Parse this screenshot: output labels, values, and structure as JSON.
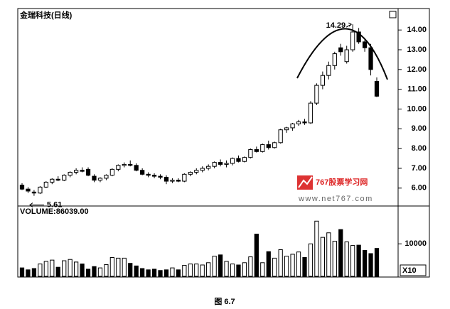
{
  "chart_data": [
    {
      "type": "candlestick",
      "title": "金瑞科技(日线)",
      "up_color": "#ffffff",
      "down_color": "#000000",
      "open": [
        6.15,
        5.95,
        5.8,
        5.75,
        6.05,
        6.3,
        6.45,
        6.4,
        6.65,
        6.8,
        6.9,
        6.95,
        6.6,
        6.4,
        6.5,
        6.65,
        6.95,
        7.15,
        7.2,
        7.15,
        6.9,
        6.7,
        6.65,
        6.6,
        6.55,
        6.35,
        6.4,
        6.35,
        6.7,
        6.8,
        6.9,
        7.0,
        7.1,
        7.3,
        7.2,
        7.25,
        7.5,
        7.35,
        7.55,
        7.95,
        7.85,
        8.2,
        8.05,
        8.3,
        8.95,
        9.05,
        9.25,
        9.35,
        9.3,
        10.3,
        11.2,
        11.7,
        12.2,
        13.1,
        12.4,
        13.0,
        13.9,
        13.4,
        13.1,
        11.4
      ],
      "high": [
        6.25,
        6.05,
        5.9,
        6.1,
        6.35,
        6.5,
        6.6,
        6.7,
        6.85,
        7.0,
        7.05,
        7.05,
        6.7,
        6.55,
        6.7,
        7.0,
        7.2,
        7.3,
        7.4,
        7.25,
        7.0,
        6.8,
        6.75,
        6.7,
        6.65,
        6.5,
        6.5,
        6.75,
        6.85,
        7.0,
        7.1,
        7.2,
        7.35,
        7.45,
        7.4,
        7.55,
        7.65,
        7.6,
        8.0,
        8.1,
        8.25,
        8.4,
        8.35,
        9.0,
        9.1,
        9.3,
        9.45,
        9.5,
        10.4,
        11.3,
        11.9,
        12.4,
        12.9,
        13.3,
        13.2,
        14.29,
        14.1,
        13.5,
        13.3,
        11.6
      ],
      "low": [
        5.9,
        5.75,
        5.61,
        5.7,
        6.0,
        6.2,
        6.35,
        6.35,
        6.55,
        6.7,
        6.8,
        6.6,
        6.3,
        6.3,
        6.4,
        6.6,
        6.85,
        7.05,
        7.1,
        6.85,
        6.65,
        6.55,
        6.5,
        6.45,
        6.2,
        6.25,
        6.3,
        6.3,
        6.6,
        6.7,
        6.8,
        6.9,
        7.0,
        7.1,
        7.05,
        7.15,
        7.3,
        7.3,
        7.5,
        7.8,
        7.8,
        7.95,
        8.0,
        8.25,
        8.8,
        8.9,
        9.15,
        9.2,
        9.25,
        10.2,
        11.0,
        11.5,
        12.0,
        12.7,
        12.3,
        12.9,
        13.3,
        12.9,
        11.7,
        10.6
      ],
      "close": [
        5.95,
        5.85,
        5.75,
        6.05,
        6.3,
        6.45,
        6.4,
        6.65,
        6.8,
        6.9,
        6.85,
        6.65,
        6.4,
        6.5,
        6.65,
        6.95,
        7.15,
        7.2,
        7.15,
        6.9,
        6.7,
        6.65,
        6.6,
        6.55,
        6.35,
        6.4,
        6.35,
        6.7,
        6.8,
        6.9,
        7.0,
        7.1,
        7.3,
        7.2,
        7.25,
        7.5,
        7.35,
        7.55,
        7.95,
        7.85,
        8.2,
        8.05,
        8.3,
        8.95,
        9.05,
        9.25,
        9.35,
        9.3,
        10.3,
        11.2,
        11.7,
        12.2,
        12.8,
        12.9,
        13.0,
        13.9,
        13.4,
        13.1,
        12.0,
        10.65
      ],
      "ylim": [
        5.13,
        15.05
      ],
      "yticks": [
        {
          "value": 6,
          "label": "6.00"
        },
        {
          "value": 7,
          "label": "7.00"
        },
        {
          "value": 8,
          "label": "8.00"
        },
        {
          "value": 9,
          "label": "9.00"
        },
        {
          "value": 10,
          "label": "10.00"
        },
        {
          "value": 11,
          "label": "11.00"
        },
        {
          "value": 12,
          "label": "12.00"
        },
        {
          "value": 13,
          "label": "13.00"
        },
        {
          "value": 14,
          "label": "14.00"
        }
      ],
      "annotations": [
        "14.29",
        "5.61"
      ]
    },
    {
      "type": "bar",
      "title": "VOLUME:86039.00",
      "multiplier": "X10",
      "values": [
        2600,
        2000,
        2400,
        3800,
        4600,
        5000,
        2800,
        4800,
        5200,
        4400,
        3800,
        2200,
        3000,
        2600,
        3600,
        5800,
        5600,
        5600,
        4000,
        3200,
        2400,
        2000,
        2200,
        1800,
        2000,
        2600,
        2000,
        3400,
        3800,
        3800,
        3500,
        4200,
        6200,
        6600,
        4600,
        3800,
        3500,
        4200,
        6000,
        13000,
        4200,
        7600,
        5600,
        8200,
        6200,
        6800,
        7500,
        5800,
        10000,
        17000,
        12000,
        13400,
        10800,
        14400,
        10600,
        9500,
        9600,
        8000,
        7000,
        8604
      ],
      "ylim": [
        0,
        21000
      ],
      "yticks": [
        10000
      ]
    }
  ],
  "watermark": {
    "name": "767股票学习网",
    "url": "www.net767.com"
  },
  "caption": "图 6.7"
}
